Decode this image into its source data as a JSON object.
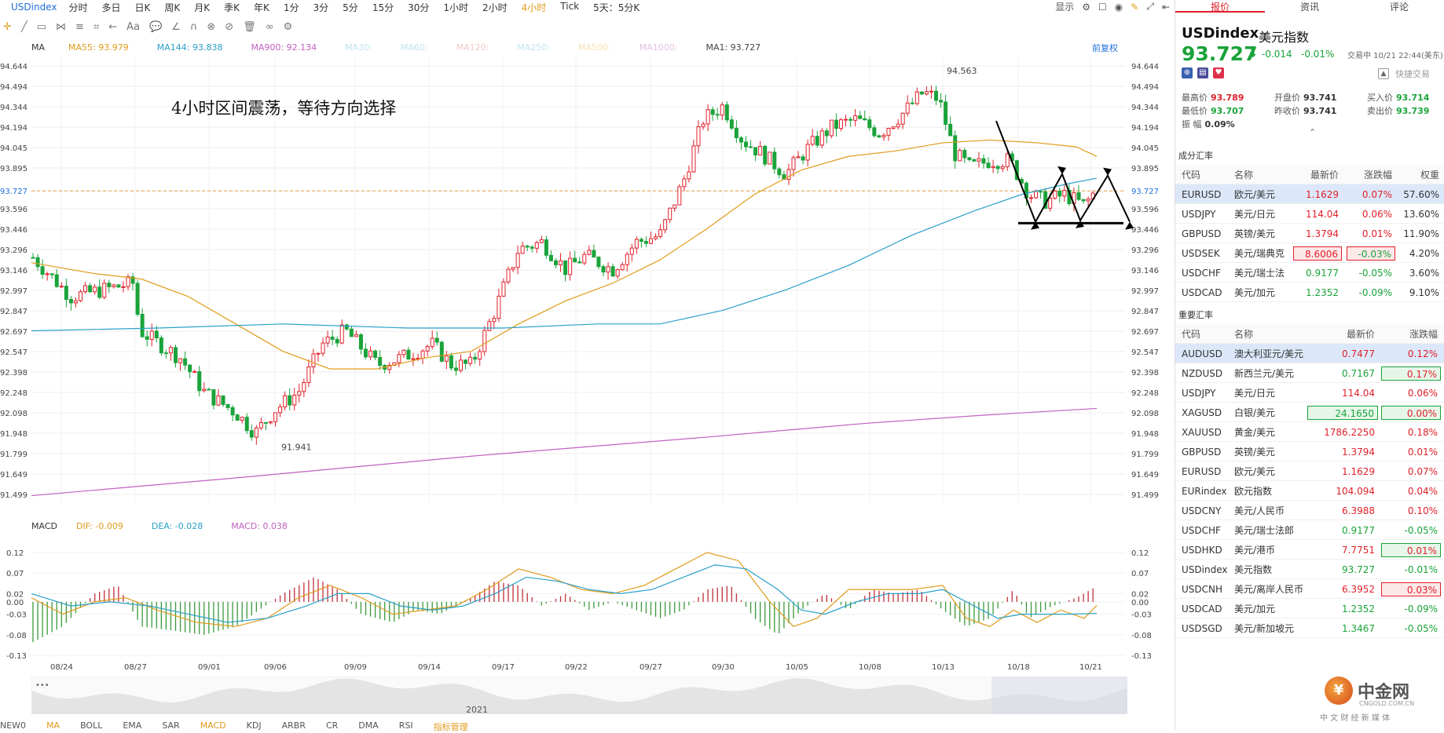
{
  "topbar": {
    "symbol": "USDindex",
    "timeframes": [
      "分时",
      "多日",
      "日K",
      "周K",
      "月K",
      "季K",
      "年K",
      "1分",
      "3分",
      "5分",
      "15分",
      "30分",
      "1小时",
      "2小时",
      "4小时",
      "Tick",
      "5天：5分K"
    ],
    "active_timeframe": "4小时",
    "display_label": "显示"
  },
  "chart": {
    "annotation": "4小时区间震荡，等待方向选择",
    "restore_label": "前复权",
    "indicator_label": "MA",
    "ma_items": [
      {
        "label": "MA55: 93.979",
        "color": "#e09b1a"
      },
      {
        "label": "MA144: 93.838",
        "color": "#2aa0c8"
      },
      {
        "label": "MA900: 92.134",
        "color": "#c060c0"
      },
      {
        "label": "MA30:",
        "color": "#bfe3ef"
      },
      {
        "label": "MA60:",
        "color": "#bfe3ef"
      },
      {
        "label": "MA120:",
        "color": "#f3c9c9"
      },
      {
        "label": "MA250:",
        "color": "#bfe3ef"
      },
      {
        "label": "MA500:",
        "color": "#f7e0b0"
      },
      {
        "label": "MA1000:",
        "color": "#e3bfe3"
      },
      {
        "label": "MA1: 93.727",
        "color": "#444"
      }
    ],
    "price_ticks": [
      "94.644",
      "94.494",
      "94.344",
      "94.194",
      "94.045",
      "93.895",
      "93.727",
      "93.596",
      "93.446",
      "93.296",
      "93.146",
      "92.997",
      "92.847",
      "92.697",
      "92.547",
      "92.398",
      "92.248",
      "92.098",
      "91.948",
      "91.799",
      "91.649",
      "91.499"
    ],
    "current_price": "93.727",
    "high_label": "94.563",
    "low_label": "91.941",
    "date_ticks": [
      "08/24",
      "08/27",
      "09/01",
      "09/06",
      "09/09",
      "09/14",
      "09/17",
      "09/22",
      "09/27",
      "09/30",
      "10/05",
      "10/08",
      "10/13",
      "10/18",
      "10/21"
    ],
    "year_label": "2021"
  },
  "macd": {
    "indicator_label": "MACD",
    "dif": "DIF: -0.009",
    "dea": "DEA: -0.028",
    "macd": "MACD: 0.038",
    "ticks": [
      "0.12",
      "0.07",
      "0.02",
      "0.00",
      "-0.03",
      "-0.08",
      "-0.13"
    ]
  },
  "bottom_tabs": [
    "NEW0",
    "MA",
    "BOLL",
    "EMA",
    "SAR",
    "MACD",
    "KDJ",
    "ARBR",
    "CR",
    "DMA",
    "RSI",
    "指标管理"
  ],
  "bottom_active": [
    "MA",
    "MACD",
    "指标管理"
  ],
  "panel": {
    "tabs": [
      "报价",
      "资讯",
      "评论"
    ],
    "symbol": "USDindex",
    "name": "美元指数",
    "price": "93.727",
    "change": "-0.014",
    "change_pct": "-0.01%",
    "status": "交易中 10/21 22:44(美东)",
    "quick_trade": "快捷交易",
    "stats": [
      {
        "label": "最高价",
        "value": "93.789",
        "cls": "up"
      },
      {
        "label": "开盘价",
        "value": "93.741",
        "cls": ""
      },
      {
        "label": "买入价",
        "value": "93.714",
        "cls": "down"
      },
      {
        "label": "最低价",
        "value": "93.707",
        "cls": "down"
      },
      {
        "label": "昨收价",
        "value": "93.741",
        "cls": ""
      },
      {
        "label": "卖出价",
        "value": "93.739",
        "cls": "down"
      },
      {
        "label": "振 幅",
        "value": "0.09%",
        "cls": ""
      }
    ],
    "components_title": "成分汇率",
    "components_header": [
      "代码",
      "名称",
      "最新价",
      "涨跌幅",
      "权重"
    ],
    "components": [
      {
        "code": "EURUSD",
        "name": "欧元/美元",
        "price": "1.1629",
        "chg": "0.07%",
        "w": "57.60%",
        "dir": "up",
        "hl": true
      },
      {
        "code": "USDJPY",
        "name": "美元/日元",
        "price": "114.04",
        "chg": "0.06%",
        "w": "13.60%",
        "dir": "up",
        "hl": false
      },
      {
        "code": "GBPUSD",
        "name": "英镑/美元",
        "price": "1.3794",
        "chg": "0.01%",
        "w": "11.90%",
        "dir": "up",
        "hl": false
      },
      {
        "code": "USDSEK",
        "name": "美元/瑞典克",
        "price": "8.6006",
        "chg": "-0.03%",
        "w": "4.20%",
        "dir": "up",
        "hl": false,
        "box": true
      },
      {
        "code": "USDCHF",
        "name": "美元/瑞士法",
        "price": "0.9177",
        "chg": "-0.05%",
        "w": "3.60%",
        "dir": "down",
        "hl": false
      },
      {
        "code": "USDCAD",
        "name": "美元/加元",
        "price": "1.2352",
        "chg": "-0.09%",
        "w": "9.10%",
        "dir": "down",
        "hl": false
      }
    ],
    "major_title": "重要汇率",
    "major_header": [
      "代码",
      "名称",
      "最新价",
      "涨跌幅"
    ],
    "major": [
      {
        "code": "AUDUSD",
        "name": "澳大利亚元/美元",
        "price": "0.7477",
        "chg": "0.12%",
        "dir": "up",
        "hl": true
      },
      {
        "code": "NZDUSD",
        "name": "新西兰元/美元",
        "price": "0.7167",
        "chg": "0.17%",
        "dir": "down",
        "hl": false,
        "box": "chg"
      },
      {
        "code": "USDJPY",
        "name": "美元/日元",
        "price": "114.04",
        "chg": "0.06%",
        "dir": "up",
        "hl": false
      },
      {
        "code": "XAGUSD",
        "name": "白银/美元",
        "price": "24.1650",
        "chg": "0.00%",
        "dir": "down",
        "hl": false,
        "box": "both"
      },
      {
        "code": "XAUUSD",
        "name": "黄金/美元",
        "price": "1786.2250",
        "chg": "0.18%",
        "dir": "up",
        "hl": false
      },
      {
        "code": "GBPUSD",
        "name": "英镑/美元",
        "price": "1.3794",
        "chg": "0.01%",
        "dir": "up",
        "hl": false
      },
      {
        "code": "EURUSD",
        "name": "欧元/美元",
        "price": "1.1629",
        "chg": "0.07%",
        "dir": "up",
        "hl": false
      },
      {
        "code": "EURindex",
        "name": "欧元指数",
        "price": "104.094",
        "chg": "0.04%",
        "dir": "up",
        "hl": false
      },
      {
        "code": "USDCNY",
        "name": "美元/人民币",
        "price": "6.3988",
        "chg": "0.10%",
        "dir": "up",
        "hl": false
      },
      {
        "code": "USDCHF",
        "name": "美元/瑞士法郎",
        "price": "0.9177",
        "chg": "-0.05%",
        "dir": "down",
        "hl": false
      },
      {
        "code": "USDHKD",
        "name": "美元/港币",
        "price": "7.7751",
        "chg": "0.01%",
        "dir": "up",
        "hl": false,
        "box": "chg"
      },
      {
        "code": "USDindex",
        "name": "美元指数",
        "price": "93.727",
        "chg": "-0.01%",
        "dir": "down",
        "hl": false
      },
      {
        "code": "USDCNH",
        "name": "美元/离岸人民币",
        "price": "6.3952",
        "chg": "0.03%",
        "dir": "up",
        "hl": false,
        "box": "chgr"
      },
      {
        "code": "USDCAD",
        "name": "美元/加元",
        "price": "1.2352",
        "chg": "-0.09%",
        "dir": "down",
        "hl": false
      },
      {
        "code": "USDSGD",
        "name": "美元/新加坡元",
        "price": "1.3467",
        "chg": "-0.05%",
        "dir": "down",
        "hl": false
      }
    ],
    "logo_text": "中金网",
    "logo_url_text": "CNGOLD.COM.CN",
    "logo_slogan": "中 文 财 经 新 媒 体"
  }
}
